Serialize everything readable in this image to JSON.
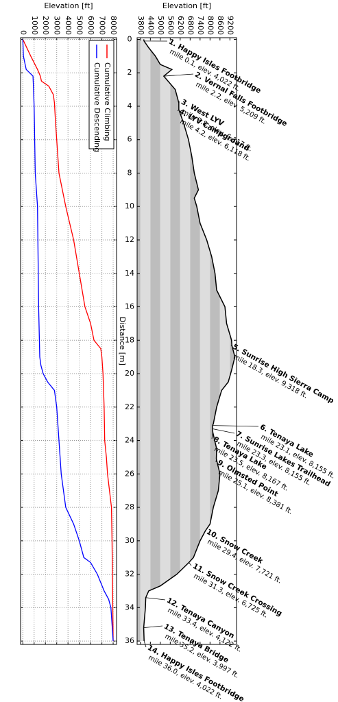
{
  "chart_data": [
    {
      "type": "line",
      "y_label": "Elevation [ft]",
      "xlim": [
        -0.1,
        36.2
      ],
      "xticks": [
        0,
        2,
        4,
        6,
        8,
        10,
        12,
        14,
        16,
        18,
        20,
        22,
        24,
        26,
        28,
        30,
        32,
        34,
        36
      ],
      "ylim": [
        -200,
        8300
      ],
      "yticks": [
        0,
        1000,
        2000,
        3000,
        4000,
        5000,
        6000,
        7000,
        8000
      ],
      "grid": true,
      "legend": "upper left",
      "series": [
        {
          "name": "Cumulative Climbing",
          "color": "#ff0000",
          "x": [
            0,
            1,
            1.8,
            2.2,
            2.5,
            2.8,
            3.3,
            3.8,
            5,
            6,
            7,
            8,
            9,
            10,
            12,
            14,
            16,
            17,
            18,
            18.5,
            19,
            20,
            22,
            24,
            25,
            26,
            28,
            30,
            36
          ],
          "values": [
            0,
            700,
            1300,
            1550,
            1650,
            2300,
            2700,
            2800,
            2900,
            3000,
            3100,
            3200,
            3500,
            3800,
            4500,
            5000,
            5500,
            6000,
            6300,
            6900,
            7000,
            7100,
            7200,
            7250,
            7400,
            7500,
            7850,
            7900,
            8000
          ]
        },
        {
          "name": "Cumulative Descending",
          "color": "#0000ff",
          "x": [
            0,
            1,
            1.8,
            2.2,
            3,
            4,
            8,
            9,
            10,
            16,
            19,
            19.5,
            20,
            20.5,
            21,
            22,
            24,
            26,
            28,
            29,
            30,
            31,
            31.3,
            32,
            33,
            33.5,
            34,
            35,
            36
          ],
          "values": [
            0,
            50,
            300,
            900,
            950,
            1000,
            1100,
            1200,
            1300,
            1400,
            1500,
            1600,
            1800,
            2200,
            2800,
            3000,
            3200,
            3400,
            3800,
            4500,
            5000,
            5400,
            6000,
            6600,
            7200,
            7600,
            7800,
            7900,
            8000
          ]
        }
      ]
    },
    {
      "type": "area",
      "y_label": "Elevation [ft]",
      "x_label": "Distance [m]",
      "xlim": [
        -0.1,
        36.2
      ],
      "xticks": [
        0,
        2,
        4,
        6,
        8,
        10,
        12,
        14,
        16,
        18,
        20,
        22,
        24,
        26,
        28,
        30,
        32,
        34,
        36
      ],
      "ylim": [
        3600,
        9600
      ],
      "yticks": [
        3800,
        4400,
        5000,
        5600,
        6200,
        6800,
        7400,
        8000,
        8600,
        9200
      ],
      "color": "#000000",
      "band_colors": [
        "#bdbdbd",
        "#dddddd"
      ],
      "x": [
        0,
        0.1,
        0.5,
        1,
        1.5,
        1.8,
        2.2,
        3,
        3.8,
        4.2,
        5,
        6,
        7,
        8,
        9,
        9.5,
        10,
        11,
        12,
        13,
        14,
        15,
        16,
        17,
        18,
        18.3,
        19,
        19.8,
        20.5,
        21,
        22,
        23,
        23.1,
        23.3,
        23.5,
        24.5,
        25.1,
        26,
        27,
        28,
        29,
        29.4,
        30,
        31,
        31.3,
        32,
        32.7,
        33,
        33.4,
        34,
        35.2,
        36
      ],
      "values": [
        3997,
        4022,
        4300,
        4700,
        5000,
        5700,
        5209,
        5900,
        6117,
        6118,
        6400,
        6700,
        6900,
        7050,
        7300,
        7050,
        7200,
        7400,
        7800,
        8100,
        8300,
        8400,
        8900,
        9000,
        9300,
        9318,
        9500,
        9300,
        9100,
        8700,
        8400,
        8200,
        8155,
        8155,
        8167,
        8400,
        8381,
        8600,
        8500,
        8200,
        8000,
        7721,
        7400,
        7000,
        6725,
        6000,
        5000,
        4300,
        4122,
        4100,
        3997,
        4022
      ],
      "annotations": [
        {
          "label": "1. Happy Isles Footbridge",
          "detail": "mile 0.1, elev. 4,022 ft.",
          "x": 0.1,
          "y": 4022
        },
        {
          "label": "2. Vernal Falls Footbridge",
          "detail": "mile 2.2, elev. 5,209 ft.",
          "x": 2.2,
          "y": 5209
        },
        {
          "label": "3. West LYV",
          "detail": "mile 3.8, elev. 6,117 ft.",
          "x": 3.8,
          "y": 6117
        },
        {
          "label": "4. LYV Campground",
          "detail": "mile 4.2, elev. 6,118 ft.",
          "x": 4.2,
          "y": 6118
        },
        {
          "label": "5. Sunrise High Sierra Camp",
          "detail": "mile 18.3, elev. 9,318 ft.",
          "x": 18.3,
          "y": 9318
        },
        {
          "label": "6. Tenaya Lake",
          "detail": "mile 23.1, elev. 8,155 ft.",
          "x": 23.1,
          "y": 8155
        },
        {
          "label": "7. Sunrise Lakes Trailhead",
          "detail": "mile 23.3, elev. 8,155 ft.",
          "x": 23.3,
          "y": 8155
        },
        {
          "label": "8. Tenaya Lake",
          "detail": "mile 23.5, elev. 8,167 ft.",
          "x": 23.5,
          "y": 8167
        },
        {
          "label": "9. Olmsted Point",
          "detail": "mile 25.1, elev. 8,381 ft.",
          "x": 25.1,
          "y": 8381
        },
        {
          "label": "10. Snow Creek",
          "detail": "mile 29.4, elev. 7,721 ft.",
          "x": 29.4,
          "y": 7721
        },
        {
          "label": "11. Snow Creek Crossing",
          "detail": "mile 31.3, elev. 6,725 ft.",
          "x": 31.3,
          "y": 6725
        },
        {
          "label": "12. Tenaya Canyon",
          "detail": "mile 33.4, elev. 4,122 ft.",
          "x": 33.4,
          "y": 4122
        },
        {
          "label": "13. Tenaya Bridge",
          "detail": "mile 35.2, elev. 3,997 ft.",
          "x": 35.2,
          "y": 3997
        },
        {
          "label": "14. Happy Isles Footbridge",
          "detail": "mile 36.0, elev. 4,022 ft.",
          "x": 36,
          "y": 4022
        }
      ]
    }
  ]
}
